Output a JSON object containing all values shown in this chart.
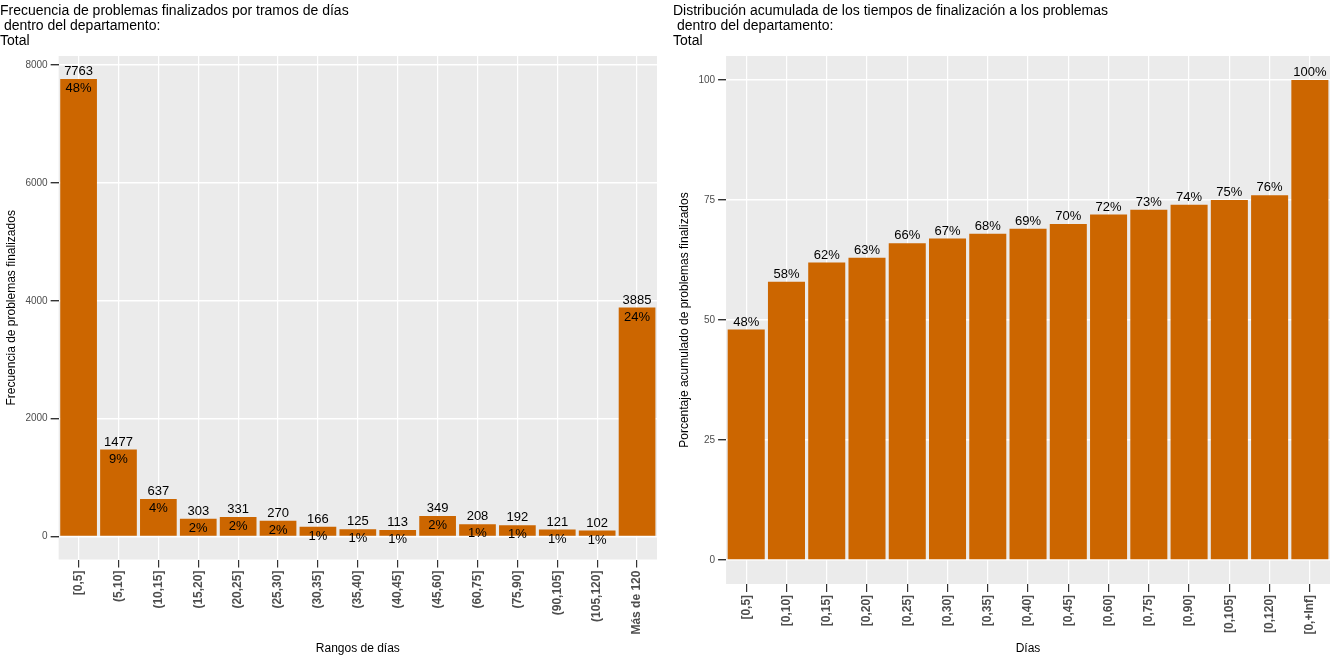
{
  "chart_data": [
    {
      "type": "bar",
      "title": "Frecuencia de problemas finalizados por tramos de días\n dentro del departamento:\nTotal",
      "xlabel": "Rangos de días",
      "ylabel": "Frecuencia de problemas finalizados",
      "categories": [
        "[0,5]",
        "(5,10]",
        "(10,15]",
        "(15,20]",
        "(20,25]",
        "(25,30]",
        "(30,35]",
        "(35,40]",
        "(40,45]",
        "(45,60]",
        "(60,75]",
        "(75,90]",
        "(90,105]",
        "(105,120]",
        "Más de 120"
      ],
      "values": [
        7763,
        1477,
        637,
        303,
        331,
        270,
        166,
        125,
        113,
        349,
        208,
        192,
        121,
        102,
        3885
      ],
      "annotations": [
        {
          "text": "48%",
          "x": "[0,5]",
          "y": 7763
        },
        {
          "text": "9%",
          "x": "(5,10]",
          "y": 1477
        },
        {
          "text": "4%",
          "x": "(10,15]",
          "y": 637
        },
        {
          "text": "2%",
          "x": "(15,20]",
          "y": 303
        },
        {
          "text": "2%",
          "x": "(20,25]",
          "y": 331
        },
        {
          "text": "2%",
          "x": "(25,30]",
          "y": 270
        },
        {
          "text": "1%",
          "x": "(30,35]",
          "y": 166
        },
        {
          "text": "1%",
          "x": "(35,40]",
          "y": 125
        },
        {
          "text": "1%",
          "x": "(40,45]",
          "y": 113
        },
        {
          "text": "2%",
          "x": "(45,60]",
          "y": 349
        },
        {
          "text": "1%",
          "x": "(60,75]",
          "y": 208
        },
        {
          "text": "1%",
          "x": "(75,90]",
          "y": 192
        },
        {
          "text": "1%",
          "x": "(90,105]",
          "y": 121
        },
        {
          "text": "1%",
          "x": "(105,120]",
          "y": 102
        },
        {
          "text": "24%",
          "x": "Más de 120",
          "y": 3885
        }
      ],
      "data_labels": true,
      "color": "#cc6600",
      "ylim": [
        -390,
        8150
      ],
      "yticks": [
        0,
        2000,
        4000,
        6000,
        8000
      ],
      "grid": true,
      "legend": false
    },
    {
      "type": "bar",
      "title": "Distribución acumulada de los tiempos de finalización a los problemas\n dentro del departamento:\nTotal",
      "xlabel": "Días",
      "ylabel": "Porcentaje acumulado de problemas finalizados",
      "categories": [
        "[0,5]",
        "[0,10]",
        "[0,15]",
        "[0,20]",
        "[0,25]",
        "[0,30]",
        "[0,35]",
        "[0,40]",
        "[0,45]",
        "[0,60]",
        "[0,75]",
        "[0,90]",
        "[0,105]",
        "[0,120]",
        "[0,+Inf]"
      ],
      "values": [
        48,
        58,
        62,
        63,
        66,
        67,
        68,
        69,
        70,
        72,
        73,
        74,
        75,
        76,
        100
      ],
      "value_labels": [
        "48%",
        "58%",
        "62%",
        "63%",
        "66%",
        "67%",
        "68%",
        "69%",
        "70%",
        "72%",
        "73%",
        "74%",
        "75%",
        "76%",
        "100%"
      ],
      "color": "#cc6600",
      "ylim": [
        -5,
        105
      ],
      "yticks": [
        0,
        25,
        50,
        75,
        100
      ],
      "grid": true,
      "legend": false
    }
  ]
}
